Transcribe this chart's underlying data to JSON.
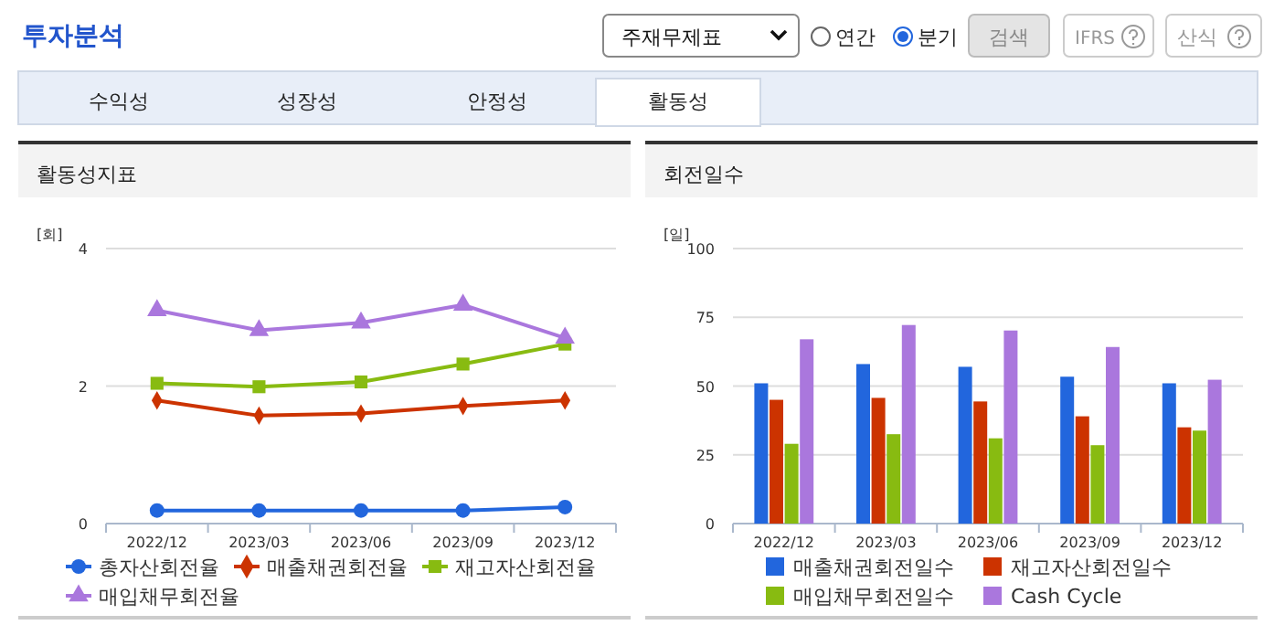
{
  "chart_data": [
    {
      "type": "other",
      "title": "투자분석",
      "annotations": [
        "주재무제표",
        "연간",
        "분기",
        "검색",
        "IFRS",
        "산식",
        "수익성",
        "성장성",
        "안정성",
        "활동성"
      ]
    },
    {
      "type": "line",
      "title": "활동성지표",
      "ylabel": "[회]",
      "categories": [
        "2022/12",
        "2023/03",
        "2023/06",
        "2023/09",
        "2023/12"
      ],
      "ylim": [
        0,
        4
      ],
      "yticks": [
        0,
        2,
        4
      ],
      "grid": "y",
      "legend": "bottom",
      "series": [
        {
          "name": "총자산회전율",
          "color": "#2266dd",
          "marker": "circle",
          "values": [
            0.19,
            0.19,
            0.19,
            0.19,
            0.24
          ]
        },
        {
          "name": "매출채권회전율",
          "color": "#cc3300",
          "marker": "diamond",
          "values": [
            1.79,
            1.57,
            1.6,
            1.71,
            1.79
          ]
        },
        {
          "name": "재고자산회전율",
          "color": "#88bb11",
          "marker": "square",
          "values": [
            2.04,
            1.99,
            2.06,
            2.32,
            2.61
          ]
        },
        {
          "name": "매입채무회전율",
          "color": "#aa77dd",
          "marker": "triangle",
          "values": [
            3.1,
            2.81,
            2.92,
            3.18,
            2.7
          ]
        }
      ]
    },
    {
      "type": "bar",
      "title": "회전일수",
      "ylabel": "[일]",
      "categories": [
        "2022/12",
        "2023/03",
        "2023/06",
        "2023/09",
        "2023/12"
      ],
      "ylim": [
        0,
        100
      ],
      "yticks": [
        0,
        25,
        50,
        75,
        100
      ],
      "grid": "y",
      "legend": "bottom",
      "series": [
        {
          "name": "매출채권회전일수",
          "color": "#2266dd",
          "values": [
            51,
            58,
            57,
            53.4,
            51
          ]
        },
        {
          "name": "재고자산회전일수",
          "color": "#cc3300",
          "values": [
            45,
            45.7,
            44.4,
            39,
            35
          ]
        },
        {
          "name": "매입채무회전일수",
          "color": "#88bb11",
          "values": [
            29,
            32.5,
            31,
            28.5,
            33.8
          ]
        },
        {
          "name": "Cash Cycle",
          "color": "#aa77dd",
          "values": [
            67,
            72.2,
            70.2,
            64.2,
            52.3
          ]
        }
      ]
    }
  ]
}
